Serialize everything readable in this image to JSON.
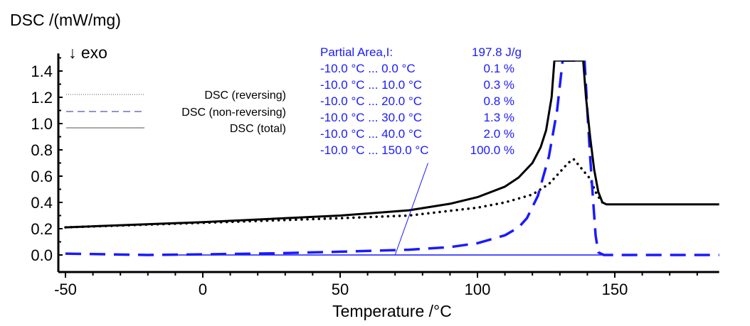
{
  "chart_data": {
    "type": "line",
    "ylabel": "DSC /(mW/mg)",
    "xlabel": "Temperature /°C",
    "direction_note": "↓ exo",
    "xlim": [
      -52,
      188
    ],
    "ylim": [
      -0.13,
      1.48
    ],
    "xticks": [
      -50,
      0,
      50,
      100,
      150
    ],
    "yticks": [
      0.0,
      0.2,
      0.4,
      0.6,
      0.8,
      1.0,
      1.2,
      1.4
    ],
    "xtick_labels": [
      "-50",
      "0",
      "50",
      "100",
      "150"
    ],
    "ytick_labels": [
      "0.0",
      "0.2",
      "0.4",
      "0.6",
      "0.8",
      "1.0",
      "1.2",
      "1.4"
    ],
    "grid": false,
    "legend_placement": "top-left",
    "series": [
      {
        "name": "DSC (reversing)",
        "style": "dotted",
        "color": "#000000",
        "x": [
          -50,
          0,
          50,
          75,
          100,
          110,
          120,
          126,
          130,
          133,
          135,
          137,
          139,
          141,
          143,
          145,
          146
        ],
        "y": [
          0.21,
          0.245,
          0.28,
          0.3,
          0.36,
          0.4,
          0.46,
          0.54,
          0.63,
          0.7,
          0.73,
          0.68,
          0.63,
          0.58,
          0.48,
          0.41,
          0.39
        ]
      },
      {
        "name": "DSC (non-reversing)",
        "style": "dashed",
        "color": "#1a1aff",
        "x": [
          -50,
          -20,
          0,
          25,
          50,
          75,
          90,
          100,
          110,
          115,
          118,
          122,
          126,
          129,
          131,
          139,
          140,
          141,
          142,
          143,
          144,
          146,
          150,
          190
        ],
        "y": [
          0.01,
          0.0,
          0.005,
          0.012,
          0.025,
          0.04,
          0.06,
          0.09,
          0.15,
          0.21,
          0.28,
          0.45,
          0.75,
          1.1,
          1.48,
          1.48,
          1.1,
          0.75,
          0.45,
          0.15,
          0.02,
          0.0,
          0.0,
          0.0
        ]
      },
      {
        "name": "DSC (total)",
        "style": "solid",
        "color": "#000000",
        "x": [
          -50,
          0,
          50,
          75,
          90,
          100,
          110,
          115,
          120,
          123,
          125,
          127,
          128,
          138.5,
          139.5,
          141,
          142.5,
          144,
          145.5,
          147,
          150,
          190
        ],
        "y": [
          0.21,
          0.25,
          0.3,
          0.34,
          0.39,
          0.44,
          0.52,
          0.59,
          0.7,
          0.82,
          0.95,
          1.2,
          1.48,
          1.48,
          1.2,
          0.9,
          0.65,
          0.48,
          0.4,
          0.385,
          0.385,
          0.385
        ]
      }
    ],
    "integration_baseline": {
      "x": [
        -10,
        147
      ],
      "y": [
        0,
        0
      ],
      "color": "#1a1aff"
    },
    "annotation": {
      "pointer": {
        "from": [
          70,
          0.0
        ],
        "to": [
          82,
          0.7
        ]
      },
      "header_label": "Partial Area,I:",
      "header_value": "197.8 J/g",
      "rows": [
        {
          "range": "-10.0 °C ... 0.0 °C",
          "value": "0.1 %"
        },
        {
          "range": "-10.0 °C ... 10.0 °C",
          "value": "0.3 %"
        },
        {
          "range": "-10.0 °C ... 20.0 °C",
          "value": "0.8 %"
        },
        {
          "range": "-10.0 °C ... 30.0 °C",
          "value": "1.3 %"
        },
        {
          "range": "-10.0 °C ... 40.0 °C",
          "value": "2.0 %"
        },
        {
          "range": "-10.0 °C ... 150.0 °C",
          "value": "100.0 %"
        }
      ],
      "color": "#1a1aff"
    }
  }
}
